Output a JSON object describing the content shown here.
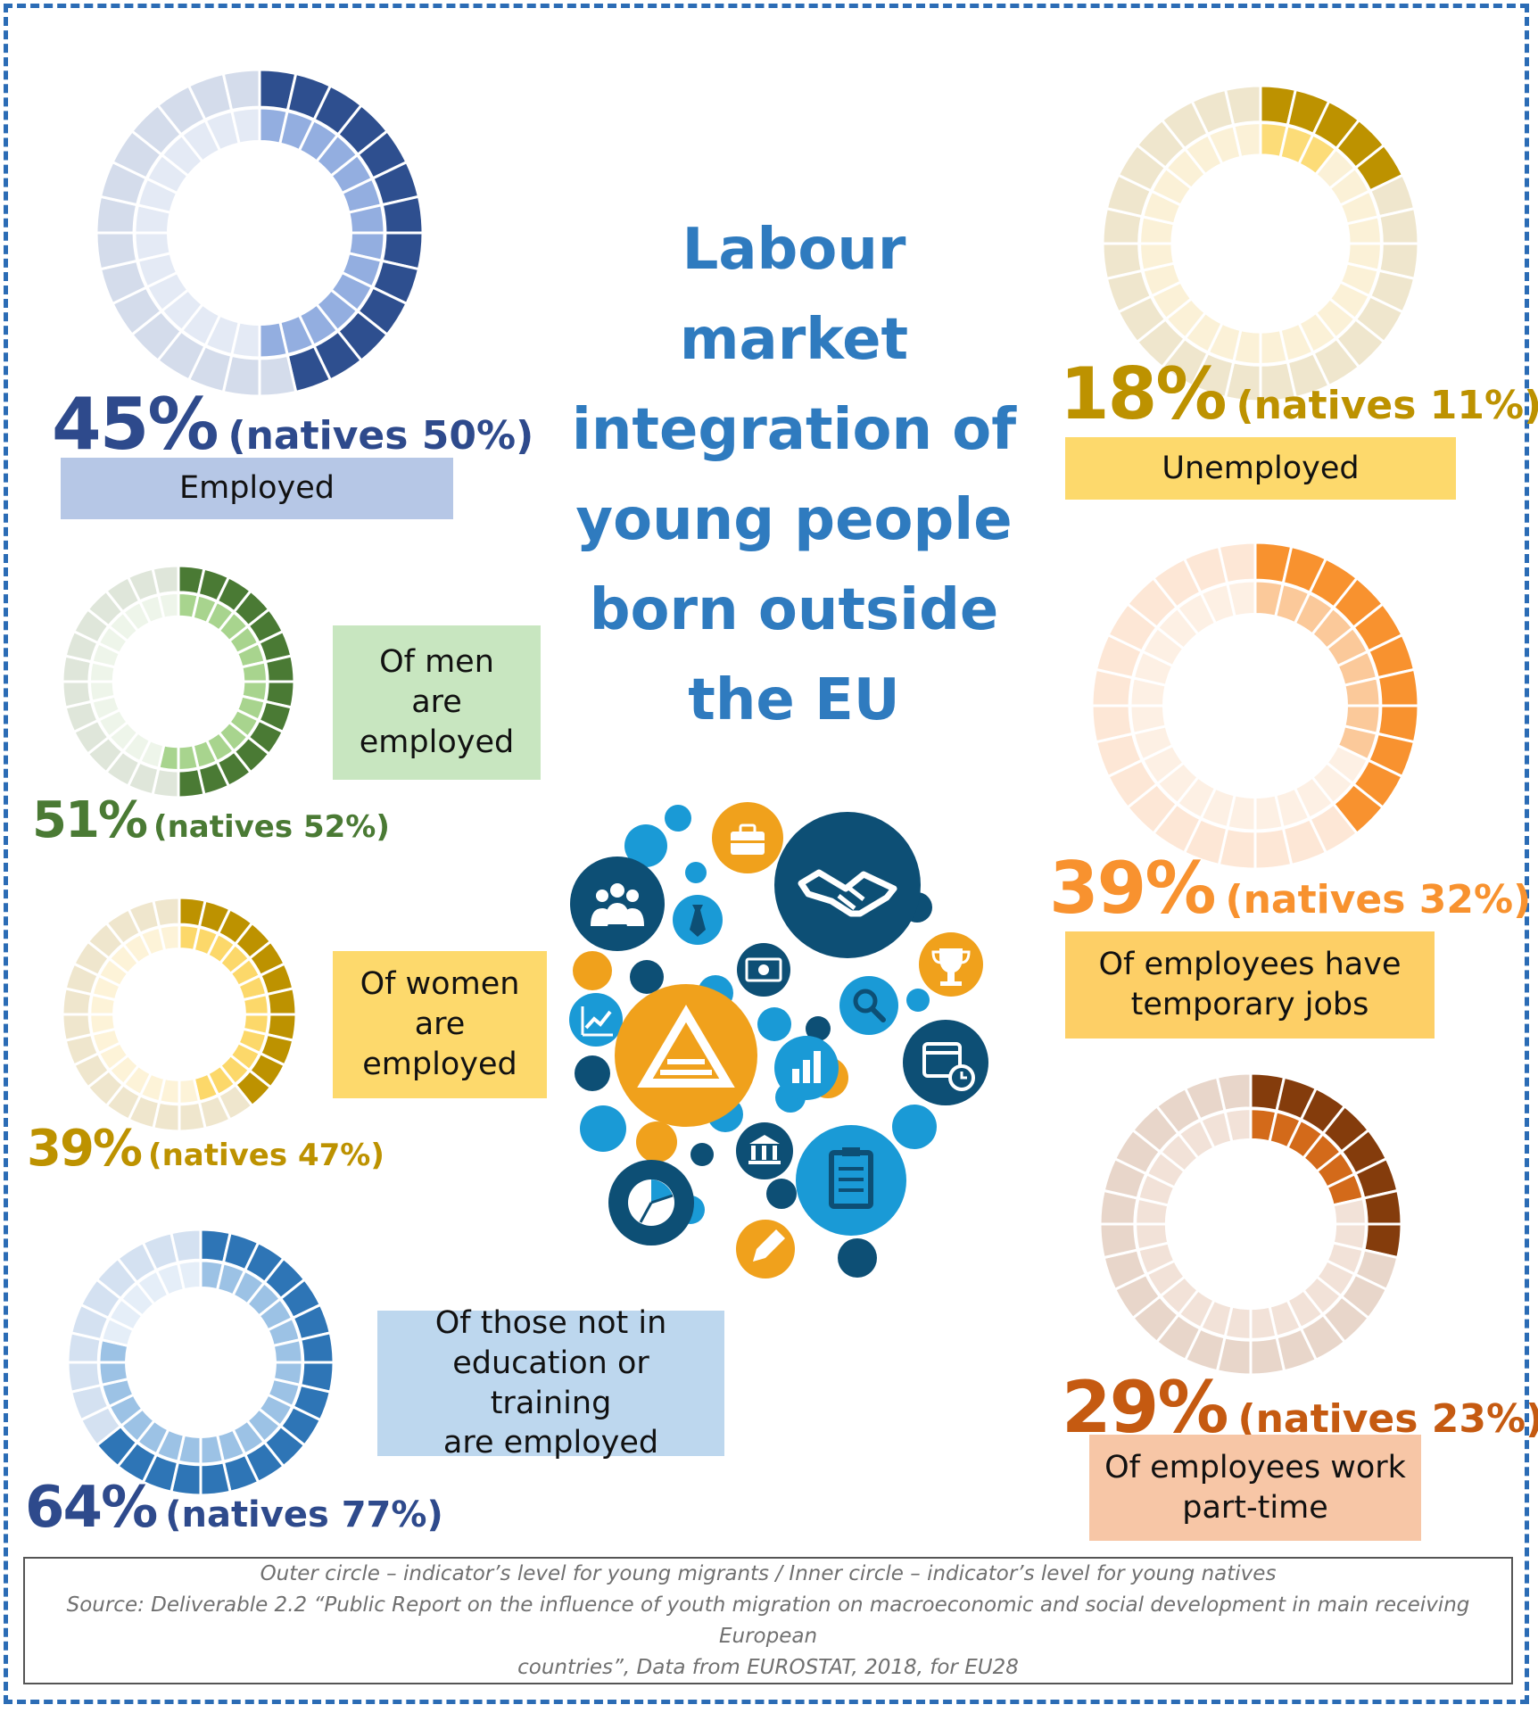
{
  "title_lines": [
    "Labour",
    "market",
    "integration of",
    "young people",
    "born outside",
    "the EU"
  ],
  "chart_data": [
    {
      "type": "donut",
      "segments": 28,
      "migrants": 45,
      "natives": 50,
      "percent_text": "45%",
      "natives_text": "(natives 50%)",
      "label": "Employed",
      "colors": {
        "dark": "#2e4f8f",
        "dark_bg": "#d4dceb",
        "inner": "#93aee0",
        "inner_bg": "#e4eaf5",
        "pct": "#2e4a8c",
        "label_bg": "#b6c7e6"
      }
    },
    {
      "type": "donut",
      "segments": 28,
      "migrants": 18,
      "natives": 11,
      "percent_text": "18%",
      "natives_text": "(natives 11%)",
      "label": "Unemployed",
      "colors": {
        "dark": "#bd9200",
        "dark_bg": "#efe6cd",
        "inner": "#fcdc78",
        "inner_bg": "#fbf1d7",
        "pct": "#bd9200",
        "label_bg": "#fdd96c"
      }
    },
    {
      "type": "donut",
      "segments": 28,
      "migrants": 51,
      "natives": 52,
      "percent_text": "51%",
      "natives_text": "(natives 52%)",
      "label": "Of men are employed",
      "colors": {
        "dark": "#4a7a34",
        "dark_bg": "#dfe6da",
        "inner": "#a8d48e",
        "inner_bg": "#eef5ea",
        "pct": "#4a7a34",
        "label_bg": "#c8e6c0"
      }
    },
    {
      "type": "donut",
      "segments": 28,
      "migrants": 39,
      "natives": 32,
      "percent_text": "39%",
      "natives_text": "(natives 32%)",
      "label": "Of employees have temporary jobs",
      "colors": {
        "dark": "#f8922f",
        "dark_bg": "#fde7d6",
        "inner": "#fbc99a",
        "inner_bg": "#fdf0e4",
        "pct": "#f8922f",
        "label_bg": "#fdcf66"
      }
    },
    {
      "type": "donut",
      "segments": 28,
      "migrants": 39,
      "natives": 47,
      "percent_text": "39%",
      "natives_text": "(natives 47%)",
      "label": "Of women are employed",
      "colors": {
        "dark": "#bd9200",
        "dark_bg": "#efe6cd",
        "inner": "#fcd86a",
        "inner_bg": "#fdf3d8",
        "pct": "#bd9200",
        "label_bg": "#fdd96c"
      }
    },
    {
      "type": "donut",
      "segments": 28,
      "migrants": 29,
      "natives": 23,
      "percent_text": "29%",
      "natives_text": "(natives 23%)",
      "label": "Of employees work part-time",
      "colors": {
        "dark": "#843c0c",
        "dark_bg": "#e8d6ca",
        "inner": "#d36a1a",
        "inner_bg": "#f2e2d8",
        "pct": "#c55a11",
        "label_bg": "#f7c6a6"
      }
    },
    {
      "type": "donut",
      "segments": 28,
      "migrants": 64,
      "natives": 77,
      "percent_text": "64%",
      "natives_text": "(natives 77%)",
      "label": "Of those not in education or training are employed",
      "colors": {
        "dark": "#2e75b6",
        "dark_bg": "#d4e1f1",
        "inner": "#9cc2e5",
        "inner_bg": "#e5eef8",
        "pct": "#2e4a8c",
        "label_bg": "#bdd7ee"
      }
    }
  ],
  "label_lines": {
    "employed": [
      "Employed"
    ],
    "unemployed": [
      "Unemployed"
    ],
    "men": [
      "Of men",
      "are",
      "employed"
    ],
    "temporary": [
      "Of employees have",
      "temporary jobs"
    ],
    "women": [
      "Of women",
      "are",
      "employed"
    ],
    "parttime": [
      "Of employees work",
      "part-time"
    ],
    "neet": [
      "Of those not in",
      "education or training",
      "are employed"
    ]
  },
  "note": {
    "line1": "Outer circle – indicator’s level for young migrants / Inner circle – indicator’s level for young natives",
    "line2": "Source: Deliverable 2.2 “Public Report on the influence of youth migration on macroeconomic and social development in main receiving European",
    "line3": "countries”, Data from EUROSTAT, 2018, for EU28"
  },
  "icons": [
    "people-icon",
    "briefcase-icon",
    "handshake-icon",
    "tie-icon",
    "money-icon",
    "trophy-icon",
    "chart-up-icon",
    "logo-icon",
    "search-icon",
    "calendar-icon",
    "bar-chart-icon",
    "bank-icon",
    "pie-chart-icon",
    "clipboard-icon",
    "pencil-icon"
  ],
  "cluster_colors": {
    "blue": "#1a9ad6",
    "orange": "#f0a11c",
    "navy": "#0d4f75"
  }
}
